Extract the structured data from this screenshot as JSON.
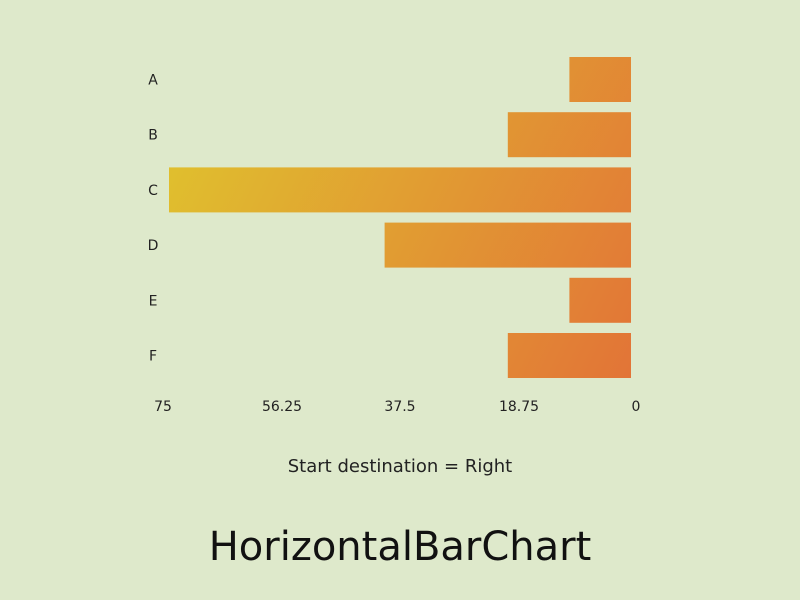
{
  "title": "HorizontalBarChart",
  "subtitle": "Start destination = Right",
  "chart_data": {
    "type": "bar",
    "orientation": "horizontal",
    "start_destination": "right",
    "categories": [
      "A",
      "B",
      "C",
      "D",
      "E",
      "F"
    ],
    "values": [
      10,
      20,
      75,
      40,
      10,
      20
    ],
    "xlim": [
      0,
      75
    ],
    "x_ticks": [
      "75",
      "56.25",
      "37.5",
      "18.75",
      "0"
    ],
    "grid": false,
    "bar_gradient": [
      "#e0c02e",
      "#e27437"
    ]
  }
}
